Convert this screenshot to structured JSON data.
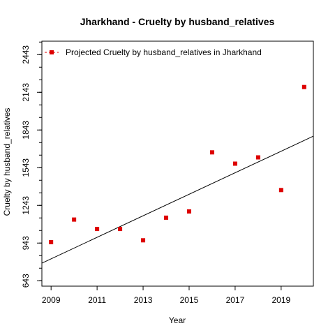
{
  "chart_data": {
    "type": "scatter",
    "title": "Jharkhand  -  Cruelty by husband_relatives",
    "xlabel": "Year",
    "ylabel": "Cruelty by husband_relatives",
    "xlim": [
      2008.6,
      2020.4
    ],
    "ylim": [
      600,
      2550
    ],
    "x_ticks": [
      2009,
      2011,
      2013,
      2015,
      2017,
      2019
    ],
    "y_ticks": [
      643,
      943,
      1243,
      1543,
      1843,
      2143,
      2443
    ],
    "y_minor_step": 100,
    "grid": false,
    "legend_position": "top-left",
    "series": [
      {
        "name": "Projected  Cruelty by husband_relatives  in  Jharkhand",
        "color": "#dd0000",
        "marker": "square",
        "x": [
          2009,
          2010,
          2011,
          2012,
          2013,
          2014,
          2015,
          2016,
          2017,
          2018,
          2019,
          2020
        ],
        "y": [
          950,
          1130,
          1055,
          1055,
          965,
          1145,
          1195,
          1665,
          1575,
          1625,
          1365,
          2185
        ]
      }
    ],
    "trend_line": {
      "color": "#000000",
      "x": [
        2008.6,
        2020.4
      ],
      "y": [
        783,
        1794
      ]
    }
  }
}
